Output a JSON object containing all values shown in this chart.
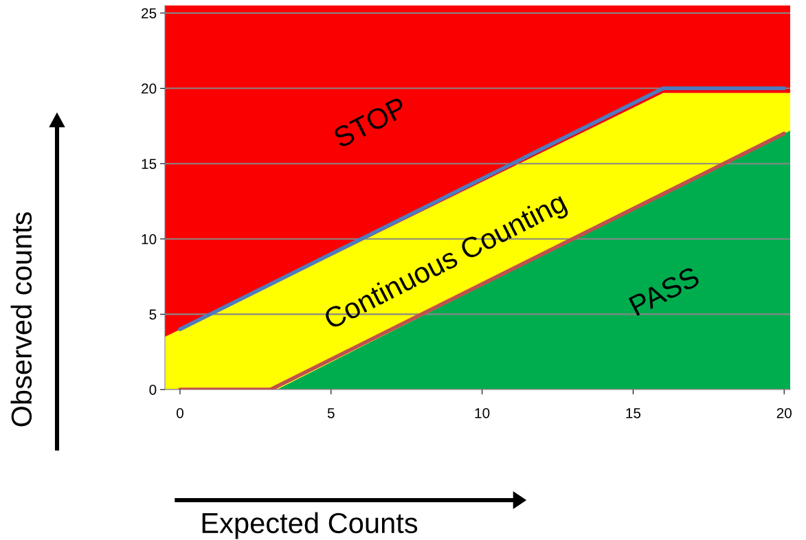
{
  "chart_data": {
    "type": "area",
    "stacked": true,
    "xlabel": "Expected Counts",
    "ylabel": "Observed counts",
    "xlim": [
      -0.5,
      20.2
    ],
    "ylim": [
      0,
      25.5
    ],
    "xticks": [
      0,
      5,
      10,
      15,
      20
    ],
    "yticks": [
      0,
      5,
      10,
      15,
      20,
      25
    ],
    "grid": "y",
    "x": [
      -0.5,
      3.2,
      16,
      20.2
    ],
    "series": [
      {
        "color": "#00ad4e",
        "values": [
          0,
          0,
          13,
          17.2
        ]
      },
      {
        "color": "#ffff00",
        "values": [
          3.5,
          7.1,
          6.7,
          2.5
        ]
      },
      {
        "color": "#fa0000",
        "values": [
          22,
          18.4,
          5.8,
          5.8
        ]
      },
      {
        "type": "line",
        "color": "#4f7bbd",
        "x": [
          0,
          16,
          20
        ],
        "values": [
          4,
          20,
          20
        ]
      },
      {
        "type": "line",
        "color": "#c0504d",
        "x": [
          0,
          3,
          20
        ],
        "values": [
          0,
          0,
          17
        ]
      }
    ],
    "annotations": [
      "STOP",
      "Continuous Counting",
      "PASS"
    ]
  }
}
